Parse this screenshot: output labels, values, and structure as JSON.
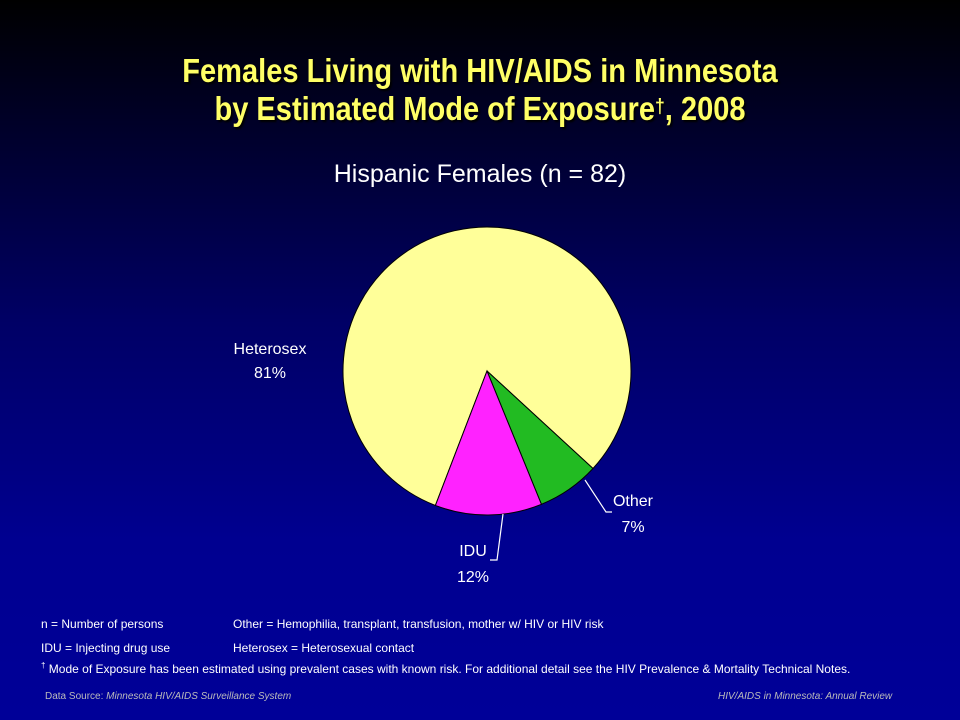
{
  "title": {
    "line1": "Females Living with HIV/AIDS in Minnesota",
    "line2_text": "by Estimated Mode of Exposure",
    "line2_dagger": "†",
    "line2_year": ", 2008"
  },
  "chart_data": {
    "type": "pie",
    "title": "Hispanic Females (n = 82)",
    "slices": [
      {
        "label": "Heterosex",
        "value": 81,
        "display": "81%",
        "color": "#ffff99"
      },
      {
        "label": "Other",
        "value": 7,
        "display": "7%",
        "color": "#22bb22"
      },
      {
        "label": "IDU",
        "value": 12,
        "display": "12%",
        "color": "#ff22ff"
      }
    ]
  },
  "notes": {
    "n_def": "n = Number of persons",
    "idu_def": "IDU = Injecting drug use",
    "other_def": "Other = Hemophilia, transplant, transfusion, mother w/ HIV or HIV risk",
    "heterosex_def": "Heterosex = Heterosexual contact",
    "dagger": "†",
    "mode_note": "Mode of Exposure has been estimated using prevalent cases with known risk. For additional detail see the HIV Prevalence & Mortality Technical Notes."
  },
  "footer": {
    "source_label": "Data Source:",
    "source_value": "Minnesota HIV/AIDS Surveillance System",
    "publication": "HIV/AIDS in Minnesota: Annual Review"
  }
}
